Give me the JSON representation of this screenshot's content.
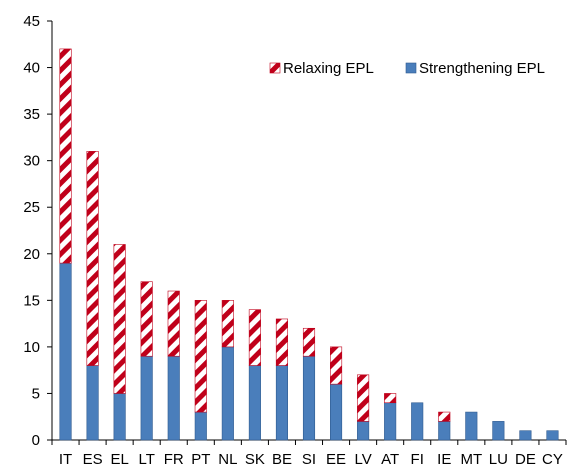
{
  "chart_data": {
    "type": "bar",
    "stacked": true,
    "categories": [
      "IT",
      "ES",
      "EL",
      "LT",
      "FR",
      "PT",
      "NL",
      "SK",
      "BE",
      "SI",
      "EE",
      "LV",
      "AT",
      "FI",
      "IE",
      "MT",
      "LU",
      "DE",
      "CY"
    ],
    "series": [
      {
        "name": "Strengthening EPL",
        "color": "#4a7ebb",
        "pattern": "solid",
        "values": [
          19,
          8,
          5,
          9,
          9,
          3,
          10,
          8,
          8,
          9,
          6,
          2,
          4,
          4,
          2,
          3,
          2,
          1,
          1
        ]
      },
      {
        "name": "Relaxing EPL",
        "color": "#c0001a",
        "pattern": "diagonal-stripes",
        "values": [
          23,
          23,
          16,
          8,
          7,
          12,
          5,
          6,
          5,
          3,
          4,
          5,
          1,
          0,
          1,
          0,
          0,
          0,
          0
        ]
      }
    ],
    "ylim": [
      0,
      45
    ],
    "yticks": [
      "0",
      "5",
      "10",
      "15",
      "20",
      "25",
      "30",
      "35",
      "40",
      "45"
    ],
    "grid": false,
    "legend": {
      "placement": "top-right",
      "entries": [
        "Relaxing EPL",
        "Strengthening EPL"
      ]
    },
    "title": "",
    "xlabel": "",
    "ylabel": ""
  }
}
